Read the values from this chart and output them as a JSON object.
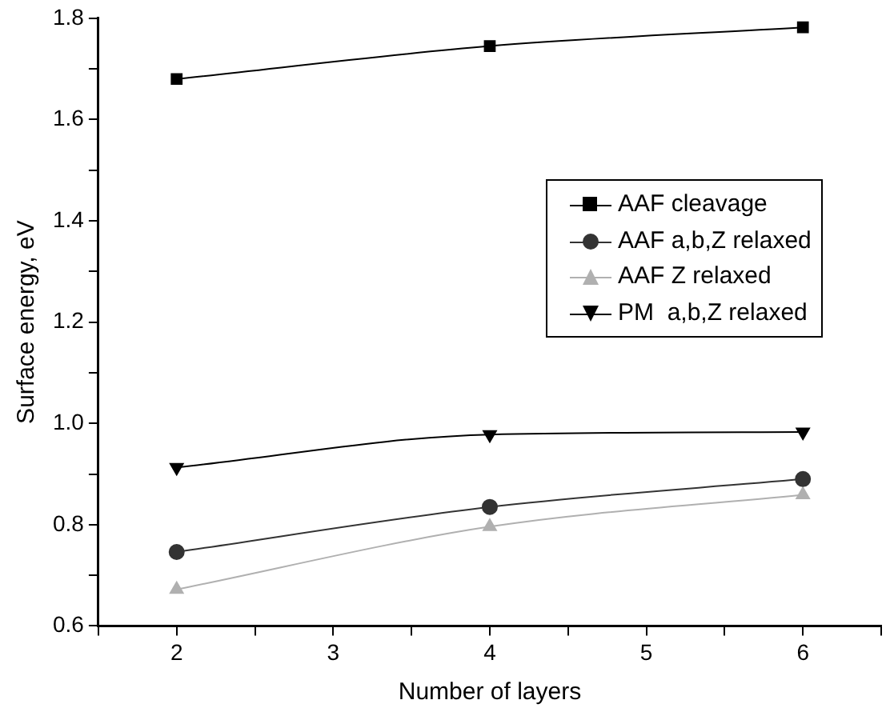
{
  "chart_data": {
    "type": "line",
    "xlabel": "Number of layers",
    "ylabel": "Surface energy, eV",
    "x": [
      2,
      4,
      6
    ],
    "series": [
      {
        "name": "AAF cleavage",
        "color": "#000000",
        "marker": "square",
        "values": [
          1.68,
          1.745,
          1.782
        ]
      },
      {
        "name": "AAF a,b,Z relaxed",
        "color": "#333333",
        "marker": "circle",
        "values": [
          0.746,
          0.835,
          0.89
        ]
      },
      {
        "name": "AAF Z relaxed",
        "color": "#b0b0b0",
        "marker": "triangle",
        "values": [
          0.672,
          0.796,
          0.859
        ]
      },
      {
        "name": "PM  a,b,Z relaxed",
        "color": "#000000",
        "marker": "triangle-down",
        "values": [
          0.913,
          0.978,
          0.983
        ]
      }
    ],
    "xlim": [
      1.5,
      6.5
    ],
    "xticks": [
      {
        "value": 1.5,
        "label": null
      },
      2,
      {
        "value": 2.5,
        "label": null
      },
      3,
      {
        "value": 3.5,
        "label": null
      },
      4,
      {
        "value": 4.5,
        "label": null
      },
      5,
      {
        "value": 5.5,
        "label": null
      },
      6,
      {
        "value": 6.5,
        "label": null
      }
    ],
    "ylim": [
      0.6,
      1.8
    ],
    "yticks": [
      0.6,
      {
        "value": 0.7,
        "label": null
      },
      0.8,
      {
        "value": 0.9,
        "label": null
      },
      {
        "value": 1,
        "label": "1.0"
      },
      {
        "value": 1.1,
        "label": null
      },
      1.2,
      {
        "value": 1.3,
        "label": null
      },
      1.4,
      {
        "value": 1.5,
        "label": null
      },
      1.6,
      {
        "value": 1.7,
        "label": null
      },
      1.8
    ],
    "grid": false,
    "legend": "right",
    "line_style": "solid"
  }
}
